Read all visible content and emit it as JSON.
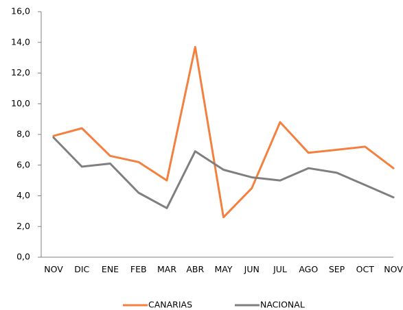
{
  "chart_data": {
    "type": "line",
    "categories": [
      "NOV",
      "DIC",
      "ENE",
      "FEB",
      "MAR",
      "ABR",
      "MAY",
      "JUN",
      "JUL",
      "AGO",
      "SEP",
      "OCT",
      "NOV"
    ],
    "series": [
      {
        "name": "CANARIAS",
        "color": "#F4803F",
        "values": [
          7.9,
          8.4,
          6.6,
          6.2,
          5.0,
          13.7,
          2.6,
          4.5,
          8.8,
          6.8,
          7.0,
          7.2,
          5.8
        ]
      },
      {
        "name": "NACIONAL",
        "color": "#7F7F7F",
        "values": [
          7.8,
          5.9,
          6.1,
          4.2,
          3.2,
          6.9,
          5.7,
          5.2,
          5.0,
          5.8,
          5.5,
          4.7,
          3.9
        ]
      }
    ],
    "ylim": [
      0,
      16
    ],
    "yticks": [
      "0,0",
      "2,0",
      "4,0",
      "6,0",
      "8,0",
      "10,0",
      "12,0",
      "14,0",
      "16,0"
    ],
    "xlabel": "",
    "ylabel": "",
    "title": "",
    "grid": false,
    "legend": "bottom"
  }
}
